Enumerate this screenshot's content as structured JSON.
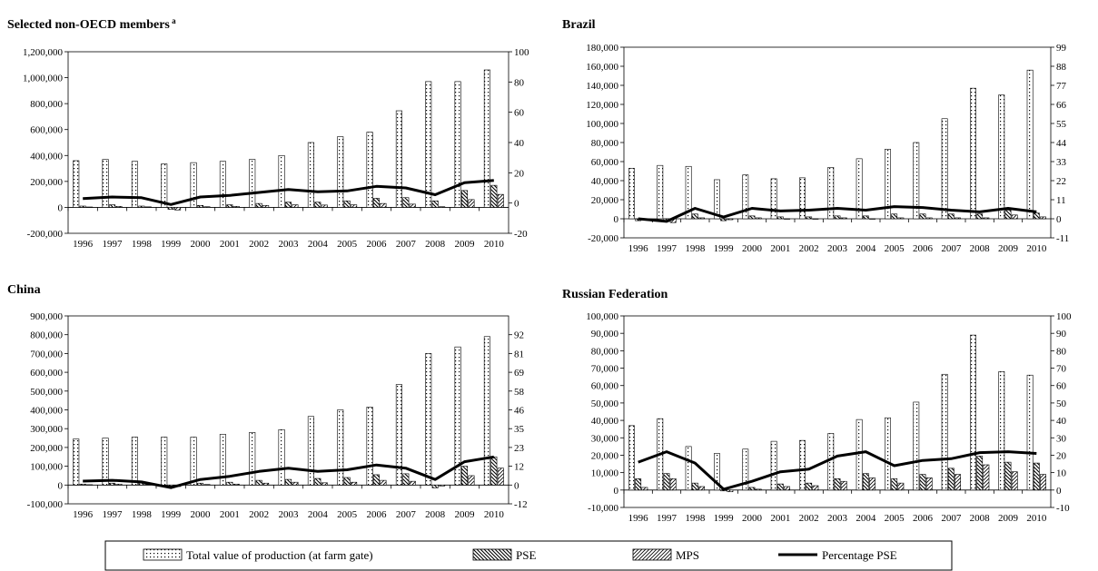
{
  "legend": {
    "tvp": "Total value of production (at farm gate)",
    "pse": "PSE",
    "mps": "MPS",
    "pct": "Percentage PSE"
  },
  "chart_data": [
    {
      "type": "bar",
      "title": "Selected non-OECD members",
      "title_superscript": "a",
      "categories": [
        "1996",
        "1997",
        "1998",
        "1999",
        "2000",
        "2001",
        "2002",
        "2003",
        "2004",
        "2005",
        "2006",
        "2007",
        "2008",
        "2009",
        "2010"
      ],
      "ylim": [
        -200000,
        1200000
      ],
      "yticks": [
        "-200,000",
        "0",
        "200,000",
        "400,000",
        "600,000",
        "800,000",
        "1,000,000",
        "1,200,000"
      ],
      "y2lim": [
        -20,
        100
      ],
      "y2ticks": [
        "-20",
        "0",
        "20",
        "40",
        "60",
        "80",
        "100"
      ],
      "series": [
        {
          "name": "Total value of production (at farm gate)",
          "values": [
            360000,
            370000,
            355000,
            335000,
            345000,
            355000,
            370000,
            400000,
            500000,
            545000,
            580000,
            745000,
            970000,
            970000,
            1060000
          ]
        },
        {
          "name": "PSE",
          "values": [
            10000,
            20000,
            10000,
            -15000,
            15000,
            20000,
            30000,
            40000,
            40000,
            50000,
            70000,
            75000,
            50000,
            130000,
            170000
          ]
        },
        {
          "name": "MPS",
          "values": [
            3000,
            8000,
            4000,
            -20000,
            5000,
            8000,
            15000,
            20000,
            18000,
            20000,
            30000,
            25000,
            5000,
            60000,
            100000
          ]
        },
        {
          "name": "Percentage PSE",
          "axis": "right",
          "values": [
            3,
            4,
            3.5,
            -1,
            4,
            5,
            7,
            9,
            7.5,
            8,
            11,
            10,
            5.5,
            13.5,
            15
          ]
        }
      ]
    },
    {
      "type": "bar",
      "title": "Brazil",
      "categories": [
        "1996",
        "1997",
        "1998",
        "1999",
        "2000",
        "2001",
        "2002",
        "2003",
        "2004",
        "2005",
        "2006",
        "2007",
        "2008",
        "2009",
        "2010"
      ],
      "ylim": [
        -20000,
        180000
      ],
      "yticks": [
        "-20,000",
        "0",
        "20,000",
        "40,000",
        "60,000",
        "80,000",
        "100,000",
        "120,000",
        "140,000",
        "160,000",
        "180,000"
      ],
      "y2lim": [
        -11,
        99
      ],
      "y2ticks": [
        "-11",
        "0",
        "11",
        "22",
        "33",
        "44",
        "55",
        "66",
        "77",
        "88",
        "99"
      ],
      "series": [
        {
          "name": "Total value of production (at farm gate)",
          "values": [
            53000,
            56000,
            55000,
            41000,
            46000,
            42000,
            43000,
            54000,
            63000,
            73000,
            80000,
            105000,
            137000,
            130000,
            156000
          ]
        },
        {
          "name": "PSE",
          "values": [
            -2000,
            -3000,
            5000,
            -2000,
            3000,
            2000,
            2000,
            3000,
            3000,
            5000,
            5000,
            5000,
            5000,
            9000,
            6000
          ]
        },
        {
          "name": "MPS",
          "values": [
            -1000,
            -4000,
            1000,
            -1000,
            1000,
            0,
            0,
            1000,
            0,
            1000,
            1000,
            1000,
            1000,
            4000,
            2000
          ]
        },
        {
          "name": "Percentage PSE",
          "axis": "right",
          "values": [
            0,
            -1.5,
            6,
            1,
            6,
            4.5,
            5,
            6,
            5,
            7,
            6.5,
            5,
            4,
            6,
            4
          ]
        }
      ]
    },
    {
      "type": "bar",
      "title": "China",
      "categories": [
        "1996",
        "1997",
        "1998",
        "1999",
        "2000",
        "2001",
        "2002",
        "2003",
        "2004",
        "2005",
        "2006",
        "2007",
        "2008",
        "2009",
        "2010"
      ],
      "ylim": [
        -100000,
        900000
      ],
      "yticks": [
        "-100,000",
        "0",
        "100,000",
        "200,000",
        "300,000",
        "400,000",
        "500,000",
        "600,000",
        "700,000",
        "800,000",
        "900,000"
      ],
      "y2lim": [
        -12,
        104
      ],
      "y2ticks": [
        "-12",
        "0",
        "12",
        "23",
        "35",
        "46",
        "58",
        "69",
        "81",
        "92"
      ],
      "series": [
        {
          "name": "Total value of production (at farm gate)",
          "values": [
            245000,
            250000,
            255000,
            255000,
            255000,
            270000,
            280000,
            295000,
            365000,
            400000,
            415000,
            535000,
            700000,
            735000,
            790000
          ]
        },
        {
          "name": "PSE",
          "values": [
            5000,
            10000,
            10000,
            -5000,
            10000,
            15000,
            25000,
            30000,
            35000,
            40000,
            55000,
            60000,
            -15000,
            100000,
            150000
          ]
        },
        {
          "name": "MPS",
          "values": [
            2000,
            5000,
            3000,
            -8000,
            3000,
            5000,
            10000,
            15000,
            12000,
            15000,
            25000,
            20000,
            -5000,
            50000,
            90000
          ]
        },
        {
          "name": "Percentage PSE",
          "axis": "right",
          "values": [
            2,
            2.5,
            1.5,
            -2,
            3,
            5,
            8,
            10,
            8,
            9,
            12,
            10,
            3,
            14,
            17
          ]
        }
      ]
    },
    {
      "type": "bar",
      "title": "Russian Federation",
      "categories": [
        "1996",
        "1997",
        "1998",
        "1999",
        "2000",
        "2001",
        "2002",
        "2003",
        "2004",
        "2005",
        "2006",
        "2007",
        "2008",
        "2009",
        "2010"
      ],
      "ylim": [
        -10000,
        100000
      ],
      "yticks": [
        "-10,000",
        "0",
        "10,000",
        "20,000",
        "30,000",
        "40,000",
        "50,000",
        "60,000",
        "70,000",
        "80,000",
        "90,000",
        "100,000"
      ],
      "y2lim": [
        -10,
        100
      ],
      "y2ticks": [
        "-10",
        "0",
        "10",
        "20",
        "30",
        "40",
        "50",
        "60",
        "70",
        "80",
        "90",
        "100"
      ],
      "series": [
        {
          "name": "Total value of production (at farm gate)",
          "values": [
            37000,
            41000,
            25000,
            21000,
            23500,
            28000,
            28500,
            32500,
            40500,
            41500,
            50500,
            66500,
            89000,
            68000,
            66000
          ]
        },
        {
          "name": "PSE",
          "values": [
            6500,
            9500,
            4000,
            -500,
            1500,
            3500,
            4000,
            6500,
            9500,
            6500,
            9000,
            12500,
            19500,
            16000,
            15500
          ]
        },
        {
          "name": "MPS",
          "values": [
            1500,
            6500,
            2000,
            -1000,
            500,
            2000,
            2500,
            5000,
            7000,
            4000,
            7000,
            9000,
            14500,
            10500,
            9000
          ]
        },
        {
          "name": "Percentage PSE",
          "axis": "right",
          "values": [
            16,
            22,
            15.5,
            0.5,
            5,
            10.5,
            12,
            19.5,
            22,
            14,
            17,
            18,
            21.5,
            22,
            21
          ]
        }
      ]
    }
  ]
}
